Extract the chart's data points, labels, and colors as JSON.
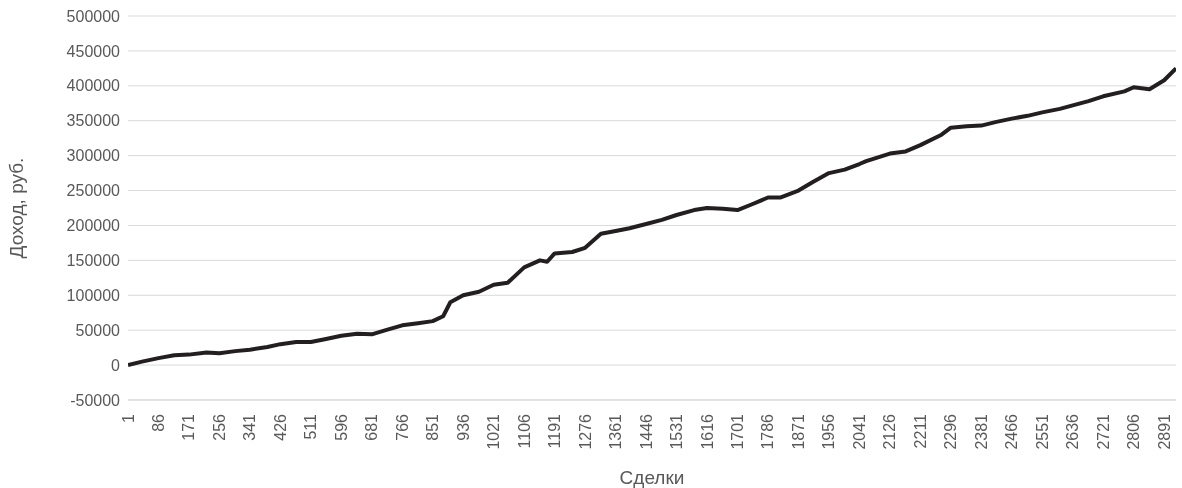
{
  "chart_data": {
    "type": "line",
    "xlabel": "Сделки",
    "ylabel": "Доход, руб.",
    "x": [
      1,
      40,
      86,
      130,
      171,
      220,
      256,
      300,
      341,
      390,
      426,
      470,
      511,
      550,
      596,
      640,
      681,
      720,
      766,
      810,
      851,
      880,
      900,
      936,
      980,
      1021,
      1060,
      1106,
      1150,
      1170,
      1191,
      1240,
      1276,
      1320,
      1361,
      1400,
      1446,
      1490,
      1531,
      1580,
      1616,
      1660,
      1701,
      1740,
      1786,
      1820,
      1871,
      1910,
      1956,
      2000,
      2041,
      2060,
      2126,
      2170,
      2211,
      2270,
      2296,
      2340,
      2381,
      2420,
      2466,
      2510,
      2551,
      2600,
      2636,
      2680,
      2721,
      2780,
      2806,
      2850,
      2891,
      2924
    ],
    "series": [
      {
        "color": "#231f20",
        "values": [
          0,
          5000,
          10000,
          14000,
          15000,
          18000,
          17000,
          20000,
          22000,
          26000,
          30000,
          33000,
          33000,
          37000,
          42000,
          45000,
          44000,
          50000,
          57000,
          60000,
          63000,
          70000,
          90000,
          100000,
          105000,
          115000,
          118000,
          140000,
          150000,
          148000,
          160000,
          162000,
          168000,
          188000,
          192000,
          196000,
          202000,
          208000,
          215000,
          222000,
          225000,
          224000,
          222000,
          230000,
          240000,
          240000,
          250000,
          262000,
          275000,
          280000,
          288000,
          292000,
          303000,
          306000,
          315000,
          330000,
          340000,
          342000,
          343000,
          348000,
          353000,
          357000,
          362000,
          367000,
          372000,
          378000,
          385000,
          392000,
          398000,
          395000,
          408000,
          425000
        ]
      }
    ],
    "xlim": [
      1,
      2924
    ],
    "xticks": [
      1,
      86,
      171,
      256,
      341,
      426,
      511,
      596,
      681,
      766,
      851,
      936,
      1021,
      1106,
      1191,
      1276,
      1361,
      1446,
      1531,
      1616,
      1701,
      1786,
      1871,
      1956,
      2041,
      2126,
      2211,
      2296,
      2381,
      2466,
      2551,
      2636,
      2721,
      2806,
      2891
    ],
    "ylim": [
      -50000,
      500000
    ],
    "yticks": [
      -50000,
      0,
      50000,
      100000,
      150000,
      200000,
      250000,
      300000,
      350000,
      400000,
      450000,
      500000
    ],
    "grid": "y",
    "marker": "none",
    "line_style": "solid",
    "legend": false
  }
}
